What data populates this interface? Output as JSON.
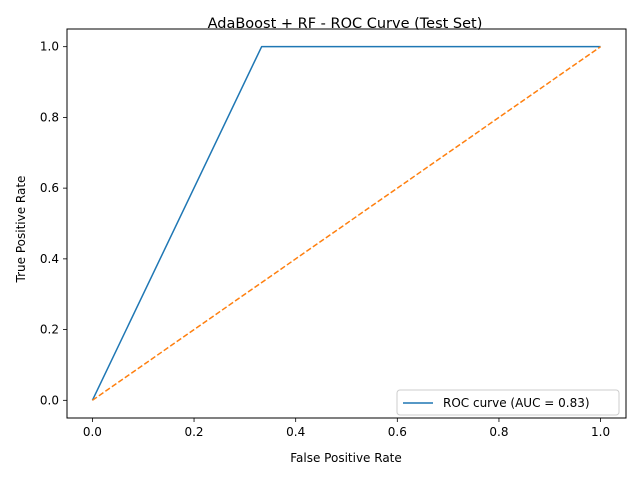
{
  "chart_data": {
    "type": "line",
    "title": "AdaBoost + RF - ROC Curve (Test Set)",
    "xlabel": "False Positive Rate",
    "ylabel": "True Positive Rate",
    "xlim": [
      -0.05,
      1.05
    ],
    "ylim": [
      -0.05,
      1.05
    ],
    "xticks": [
      0.0,
      0.2,
      0.4,
      0.6,
      0.8,
      1.0
    ],
    "yticks": [
      0.0,
      0.2,
      0.4,
      0.6,
      0.8,
      1.0
    ],
    "xtick_labels": [
      "0.0",
      "0.2",
      "0.4",
      "0.6",
      "0.8",
      "1.0"
    ],
    "ytick_labels": [
      "0.0",
      "0.2",
      "0.4",
      "0.6",
      "0.8",
      "1.0"
    ],
    "grid": false,
    "legend_position": "lower-right",
    "series": [
      {
        "name": "ROC curve (AUC = 0.83)",
        "color": "#1f77b4",
        "style": "solid",
        "x": [
          0.0,
          0.333,
          1.0
        ],
        "y": [
          0.0,
          1.0,
          1.0
        ]
      },
      {
        "color": "#ff7f0e",
        "style": "dashed",
        "x": [
          0.0,
          1.0
        ],
        "y": [
          0.0,
          1.0
        ]
      }
    ]
  }
}
